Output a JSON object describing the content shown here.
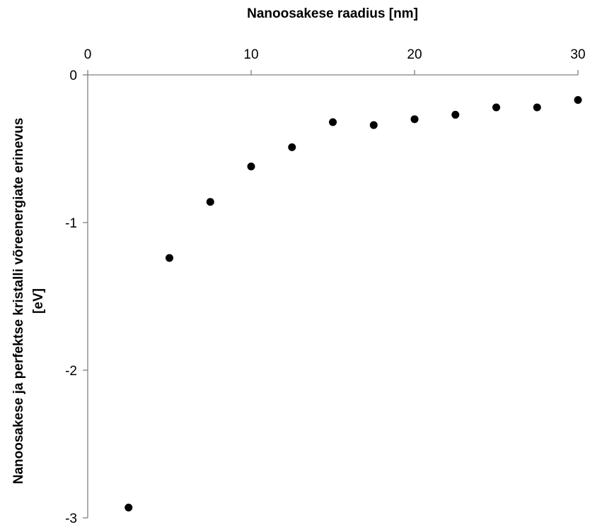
{
  "chart_data": {
    "type": "scatter",
    "title": "",
    "xlabel": "Nanoosakese raadius [nm]",
    "ylabel_lines": [
      "Nanoosakese ja perfektse kristalli võreenergiate erinevus",
      "[eV]"
    ],
    "xlim": [
      0,
      30
    ],
    "ylim": [
      -3,
      0
    ],
    "x_ticks": [
      0,
      10,
      20,
      30
    ],
    "y_ticks": [
      0,
      -1,
      -2,
      -3
    ],
    "x_axis_position": "top",
    "grid": false,
    "legend": "none",
    "marker_color": "#000000",
    "axis_color": "#808080",
    "series": [
      {
        "x": [
          2.5,
          5,
          7.5,
          10,
          12.5,
          15,
          17.5,
          20,
          22.5,
          25,
          27.5,
          30
        ],
        "y": [
          -2.93,
          -1.24,
          -0.86,
          -0.62,
          -0.49,
          -0.32,
          -0.34,
          -0.3,
          -0.27,
          -0.22,
          -0.22,
          -0.17
        ]
      }
    ]
  }
}
